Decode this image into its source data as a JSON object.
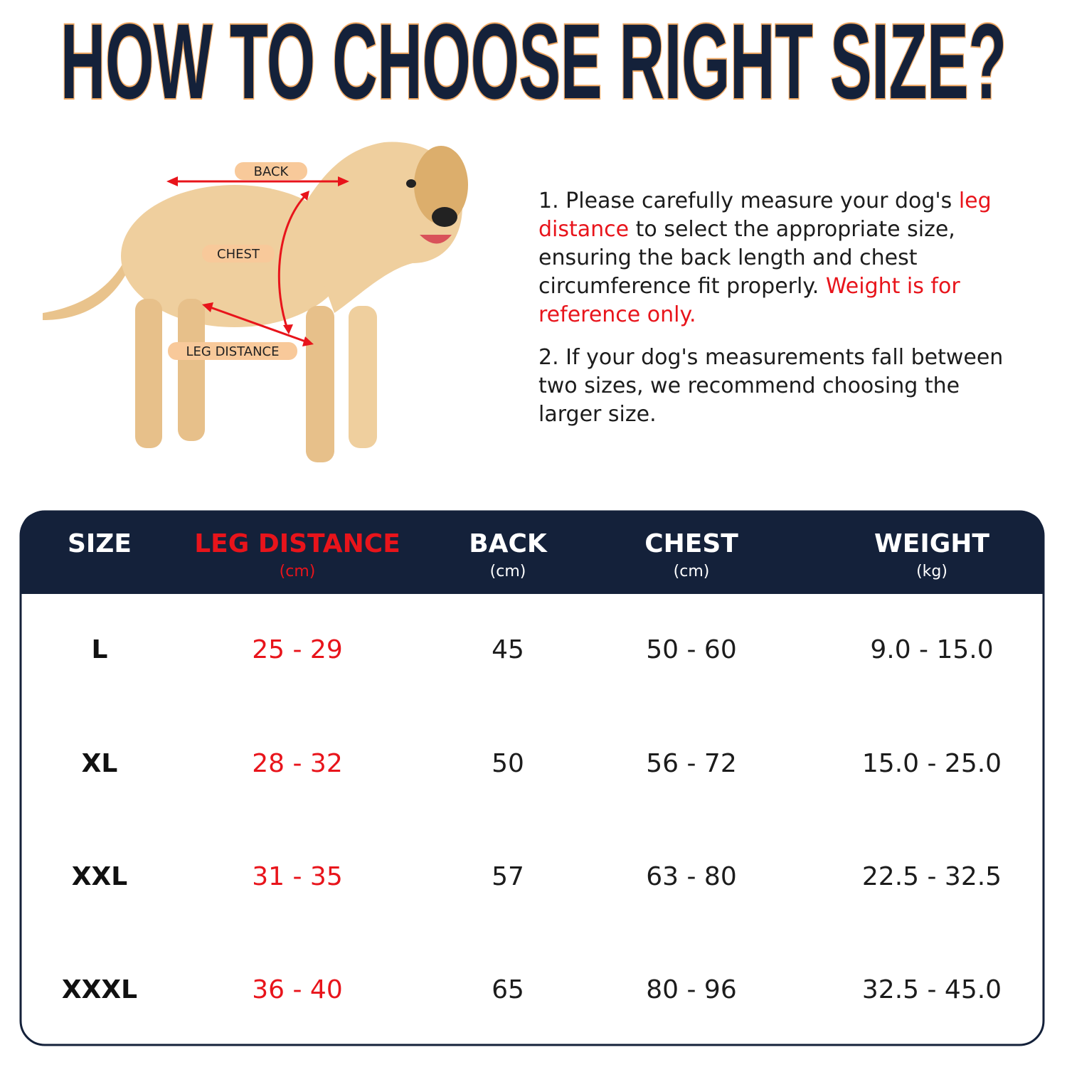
{
  "header": {
    "title": "HOW TO CHOOSE RIGHT SIZE?"
  },
  "diagram": {
    "labels": [
      "BACK",
      "CHEST",
      "LEG DISTANCE"
    ]
  },
  "instructions": [
    [
      {
        "text": "1. Please carefully measure your dog's ",
        "color": "#1c1c1c"
      },
      {
        "text": "leg distance",
        "color": "#e8141b"
      },
      {
        "text": " to select the appropriate size, ensuring the back length and chest circumference fit properly. ",
        "color": "#1c1c1c"
      },
      {
        "text": "Weight is for reference only.",
        "color": "#e8141b"
      }
    ],
    [
      {
        "text": "2. If your dog's measurements fall between two sizes, we recommend choosing the larger size.",
        "color": "#1c1c1c"
      }
    ]
  ],
  "table": {
    "columns": [
      {
        "name": "SIZE",
        "header_color": "#ffffff",
        "cell_color": "#111111"
      },
      {
        "name": "LEG DISTANCE",
        "unit": "(cm)",
        "header_color": "#e8141b",
        "cell_color": "#e8141b"
      },
      {
        "name": "BACK",
        "unit": "(cm)",
        "header_color": "#ffffff",
        "cell_color": "#1c1c1c"
      },
      {
        "name": "CHEST",
        "unit": "(cm)",
        "header_color": "#ffffff",
        "cell_color": "#1c1c1c"
      },
      {
        "name": "WEIGHT",
        "unit": "(kg)",
        "header_color": "#ffffff",
        "cell_color": "#1c1c1c"
      }
    ],
    "rows": [
      [
        "L",
        "25 - 29",
        "45",
        "50 - 60",
        "9.0 - 15.0"
      ],
      [
        "XL",
        "28 - 32",
        "50",
        "56 - 72",
        "15.0 - 25.0"
      ],
      [
        "XXL",
        "31 - 35",
        "57",
        "63 - 80",
        "22.5 - 32.5"
      ],
      [
        "XXXL",
        "36 - 40",
        "65",
        "80 - 96",
        "32.5 - 45.0"
      ]
    ]
  }
}
